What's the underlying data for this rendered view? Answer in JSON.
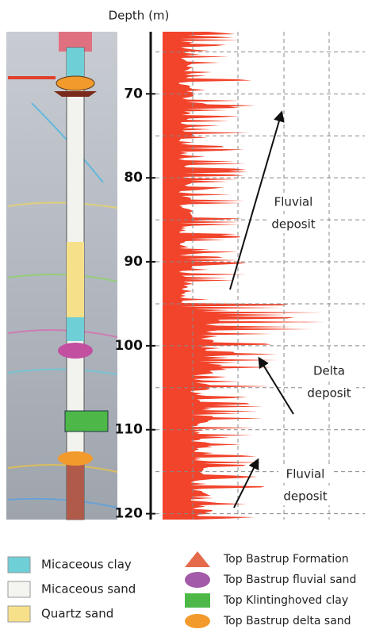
{
  "chart_data": {
    "type": "well-log",
    "title": "Depth (m)",
    "ylim": [
      62.6,
      120.7
    ],
    "yticks": [
      70,
      80,
      90,
      100,
      110,
      120
    ],
    "grid": true,
    "color": "#f2432b",
    "annotations": [
      {
        "lines": [
          "Fluvial",
          "deposit"
        ]
      },
      {
        "lines": [
          "Delta",
          "deposit"
        ]
      },
      {
        "lines": [
          "Fluvial",
          "deposit"
        ]
      }
    ],
    "legend_left": [
      {
        "name": "Micaceous clay",
        "color": "#6fcfd6"
      },
      {
        "name": "Micaceous sand",
        "color": "#f4f4f0"
      },
      {
        "name": "Quartz sand",
        "color": "#f7e08a"
      }
    ],
    "legend_right": [
      {
        "name": "Top Bastrup Formation",
        "color": "#e56a4b"
      },
      {
        "name": "Top Bastrup fluvial sand",
        "color": "#a35aa8"
      },
      {
        "name": "Top Klintinghoved clay",
        "color": "#4db848"
      },
      {
        "name": "Top Bastrup delta sand",
        "color": "#f39a2c"
      }
    ]
  }
}
